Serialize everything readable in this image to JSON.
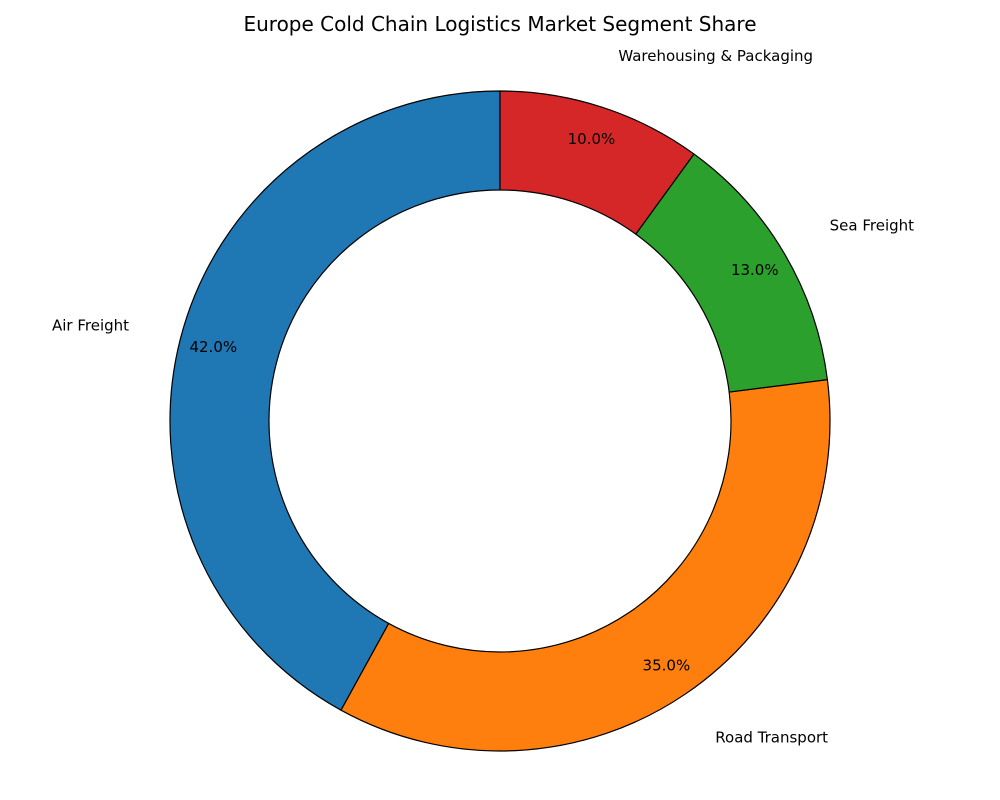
{
  "chart_data": {
    "type": "pie",
    "style": "donut",
    "title": "Europe Cold Chain Logistics Market Segment Share",
    "categories": [
      "Air Freight",
      "Road Transport",
      "Sea Freight",
      "Warehousing & Packaging"
    ],
    "values": [
      42.0,
      35.0,
      13.0,
      10.0
    ],
    "value_labels": [
      "42.0%",
      "35.0%",
      "13.0%",
      "10.0%"
    ],
    "colors": [
      "#1f77b4",
      "#ff7f0e",
      "#2ca02c",
      "#d62728"
    ],
    "start_angle_deg": 90,
    "direction": "counterclockwise",
    "legend": "none"
  }
}
